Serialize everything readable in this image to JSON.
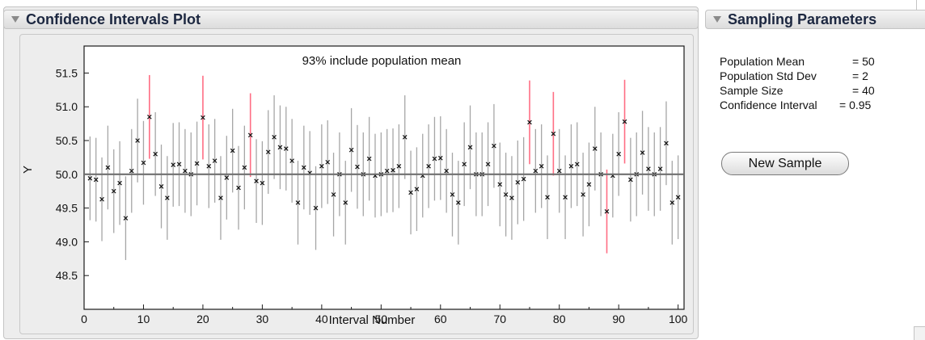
{
  "panels": {
    "left_title": "Confidence Intervals Plot",
    "right_title": "Sampling Parameters"
  },
  "parameters": [
    {
      "label": "Population Mean",
      "value": "= 50"
    },
    {
      "label": "Population Std Dev",
      "value": "= 2"
    },
    {
      "label": "Sample Size",
      "value": "= 40"
    },
    {
      "label": "Confidence Interval",
      "value": "= 0.95"
    }
  ],
  "new_sample_label": "New Sample",
  "colors": {
    "normal": "#a6a6a6",
    "miss": "#ff6e84",
    "mean_line": "#707070"
  },
  "chart_data": {
    "type": "scatter",
    "annotation": "93% include population mean",
    "xlabel": "Interval Number",
    "ylabel": "Y",
    "xlim": [
      0,
      101
    ],
    "ylim": [
      48.0,
      51.9
    ],
    "x_ticks": [
      0,
      10,
      20,
      30,
      40,
      50,
      60,
      70,
      80,
      90,
      100
    ],
    "y_ticks": [
      "48.5",
      "49.0",
      "49.5",
      "50.0",
      "50.5",
      "51.0",
      "51.5"
    ],
    "reference_line": 50.0,
    "half_width": 0.62,
    "series": [
      {
        "means": [
          49.94,
          49.92,
          49.63,
          50.1,
          49.75,
          49.87,
          49.35,
          50.05,
          50.5,
          50.17,
          50.85,
          50.3,
          49.82,
          49.65,
          50.14,
          50.15,
          50.05,
          50.0,
          50.16,
          50.84,
          50.12,
          50.2,
          49.65,
          49.95,
          50.35,
          49.8,
          50.1,
          50.58,
          49.9,
          49.87,
          50.33,
          50.55,
          50.4,
          50.38,
          50.2,
          49.58,
          50.1,
          50.02,
          49.5,
          50.12,
          50.18,
          49.7,
          50.0,
          49.58,
          50.36,
          50.11,
          50.0,
          50.23,
          49.98,
          50.0,
          50.05,
          50.06,
          50.12,
          50.55,
          49.73,
          49.78,
          49.98,
          50.12,
          50.23,
          50.24,
          50.05,
          49.7,
          49.58,
          50.15,
          50.4,
          50.0,
          50.0,
          50.15,
          50.42,
          49.85,
          49.7,
          49.65,
          49.88,
          49.93,
          50.77,
          50.05,
          50.12,
          49.66,
          50.6,
          50.05,
          49.66,
          50.12,
          50.15,
          49.7,
          49.85,
          50.38,
          50.0,
          49.45,
          49.98,
          50.3,
          50.78,
          49.92,
          50.0,
          50.32,
          50.08,
          50.0,
          50.08,
          50.46,
          49.58,
          49.66
        ],
        "misses": [
          11,
          20,
          28,
          75,
          79,
          88,
          91
        ]
      }
    ]
  }
}
